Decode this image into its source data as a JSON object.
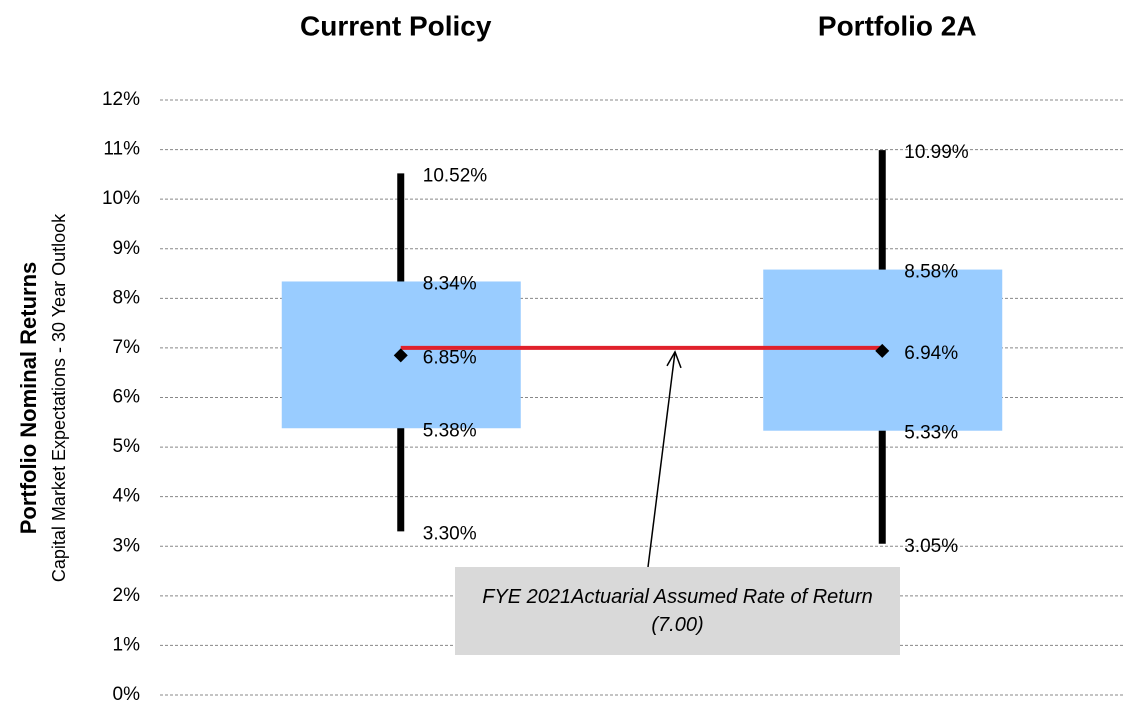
{
  "chart_data": {
    "type": "box",
    "categories": [
      "Current Policy",
      "Portfolio 2A"
    ],
    "y_label": "Portfolio Nominal Returns",
    "y_sublabel": "Capital Market Expectations - 30 Year Outlook",
    "ylim": [
      0,
      12
    ],
    "yticks": [
      {
        "value": 0,
        "label": "0%"
      },
      {
        "value": 1,
        "label": "1%"
      },
      {
        "value": 2,
        "label": "2%"
      },
      {
        "value": 3,
        "label": "3%"
      },
      {
        "value": 4,
        "label": "4%"
      },
      {
        "value": 5,
        "label": "5%"
      },
      {
        "value": 6,
        "label": "6%"
      },
      {
        "value": 7,
        "label": "7%"
      },
      {
        "value": 8,
        "label": "8%"
      },
      {
        "value": 9,
        "label": "9%"
      },
      {
        "value": 10,
        "label": "10%"
      },
      {
        "value": 11,
        "label": "11%"
      },
      {
        "value": 12,
        "label": "12%"
      }
    ],
    "grid": true,
    "box_color": "#99ccff",
    "whisker_color": "#000000",
    "reference_color": "#e0212b",
    "boxes": [
      {
        "low": 3.3,
        "q1": 5.38,
        "median": 6.85,
        "q3": 8.34,
        "high": 10.52,
        "value_labels": {
          "low": "3.30%",
          "q1": "5.38%",
          "median": "6.85%",
          "q3": "8.34%",
          "high": "10.52%"
        }
      },
      {
        "low": 3.05,
        "q1": 5.33,
        "median": 6.94,
        "q3": 8.58,
        "high": 10.99,
        "value_labels": {
          "low": "3.05%",
          "q1": "5.33%",
          "median": "6.94%",
          "q3": "8.58%",
          "high": "10.99%"
        }
      }
    ],
    "reference_value": 7.0,
    "annotation": "FYE 2021Actuarial Assumed Rate of Return (7.00)"
  }
}
